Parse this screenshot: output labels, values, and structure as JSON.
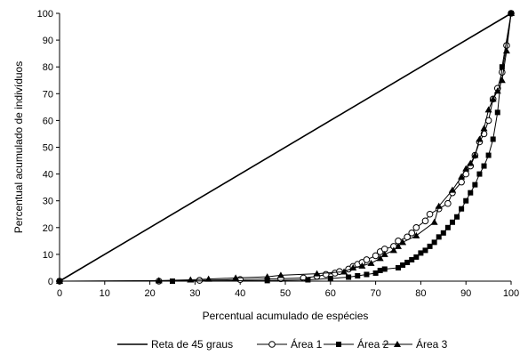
{
  "chart_data": {
    "type": "line",
    "title": "",
    "xlabel": "Percentual acumulado de espécies",
    "ylabel": "Percentual acumulado de indivíduos",
    "xlim": [
      0,
      100
    ],
    "ylim": [
      0,
      100
    ],
    "x_ticks": [
      "0",
      "10",
      "20",
      "30",
      "40",
      "50",
      "60",
      "70",
      "80",
      "90",
      "100"
    ],
    "y_ticks": [
      "0",
      "10",
      "20",
      "30",
      "40",
      "50",
      "60",
      "70",
      "80",
      "90",
      "100"
    ],
    "grid": false,
    "legend_position": "bottom",
    "series": [
      {
        "name": "Reta de 45 graus",
        "marker": "none",
        "points": [
          [
            0,
            0
          ],
          [
            100,
            100
          ]
        ]
      },
      {
        "name": "Área 1",
        "marker": "circle-open",
        "points": [
          [
            0,
            0
          ],
          [
            22,
            0
          ],
          [
            31,
            0.3
          ],
          [
            40,
            0.6
          ],
          [
            49,
            0.9
          ],
          [
            54,
            1.2
          ],
          [
            57,
            1.8
          ],
          [
            59,
            2.5
          ],
          [
            61,
            3.0
          ],
          [
            62,
            3.6
          ],
          [
            64,
            4.5
          ],
          [
            65,
            5.5
          ],
          [
            66,
            6.3
          ],
          [
            67,
            7.0
          ],
          [
            68,
            8.0
          ],
          [
            70,
            9.5
          ],
          [
            71,
            11
          ],
          [
            72,
            12
          ],
          [
            74,
            13
          ],
          [
            75,
            15
          ],
          [
            77,
            16.5
          ],
          [
            78,
            18
          ],
          [
            79,
            20
          ],
          [
            81,
            22.5
          ],
          [
            82,
            25
          ],
          [
            84,
            27
          ],
          [
            86,
            29
          ],
          [
            87,
            33
          ],
          [
            89,
            37
          ],
          [
            90,
            40
          ],
          [
            91,
            43
          ],
          [
            92,
            47
          ],
          [
            93,
            52
          ],
          [
            94,
            55
          ],
          [
            95,
            60
          ],
          [
            96,
            68
          ],
          [
            97,
            72
          ],
          [
            98,
            78
          ],
          [
            99,
            88
          ],
          [
            100,
            100
          ]
        ]
      },
      {
        "name": "Área 2",
        "marker": "square-filled",
        "points": [
          [
            0,
            0
          ],
          [
            25,
            0
          ],
          [
            46,
            0.2
          ],
          [
            55,
            0.5
          ],
          [
            60,
            1.0
          ],
          [
            64,
            1.5
          ],
          [
            66,
            2.0
          ],
          [
            68,
            2.5
          ],
          [
            70,
            3.0
          ],
          [
            71,
            4.0
          ],
          [
            72,
            4.5
          ],
          [
            75,
            5.0
          ],
          [
            76,
            6.0
          ],
          [
            77,
            7.0
          ],
          [
            78,
            8.0
          ],
          [
            79,
            9.0
          ],
          [
            80,
            10.5
          ],
          [
            81,
            11.5
          ],
          [
            82,
            13
          ],
          [
            83,
            14.5
          ],
          [
            84,
            16.5
          ],
          [
            85,
            18
          ],
          [
            86,
            20
          ],
          [
            87,
            22
          ],
          [
            88,
            24
          ],
          [
            89,
            27
          ],
          [
            90,
            30
          ],
          [
            91,
            33
          ],
          [
            92,
            36
          ],
          [
            93,
            40
          ],
          [
            94,
            43
          ],
          [
            95,
            47
          ],
          [
            96,
            53
          ],
          [
            97,
            63
          ],
          [
            98,
            80
          ],
          [
            100,
            100
          ]
        ]
      },
      {
        "name": "Área 3",
        "marker": "triangle-filled",
        "points": [
          [
            0,
            0
          ],
          [
            22,
            0.2
          ],
          [
            29,
            0.5
          ],
          [
            33,
            0.8
          ],
          [
            39,
            1.2
          ],
          [
            46,
            1.6
          ],
          [
            49,
            2.2
          ],
          [
            57,
            2.8
          ],
          [
            63,
            3.5
          ],
          [
            65,
            5.0
          ],
          [
            67,
            5.7
          ],
          [
            69,
            6.7
          ],
          [
            71,
            8.5
          ],
          [
            72,
            10
          ],
          [
            74,
            11.5
          ],
          [
            75,
            13
          ],
          [
            76,
            14.5
          ],
          [
            79,
            17
          ],
          [
            83,
            22
          ],
          [
            84,
            28
          ],
          [
            87,
            34
          ],
          [
            89,
            39
          ],
          [
            90,
            42
          ],
          [
            91,
            44
          ],
          [
            92,
            47
          ],
          [
            93,
            53
          ],
          [
            94,
            57
          ],
          [
            95,
            64
          ],
          [
            96,
            68
          ],
          [
            97,
            71
          ],
          [
            98,
            75
          ],
          [
            99,
            86
          ],
          [
            100,
            100
          ]
        ]
      }
    ]
  }
}
